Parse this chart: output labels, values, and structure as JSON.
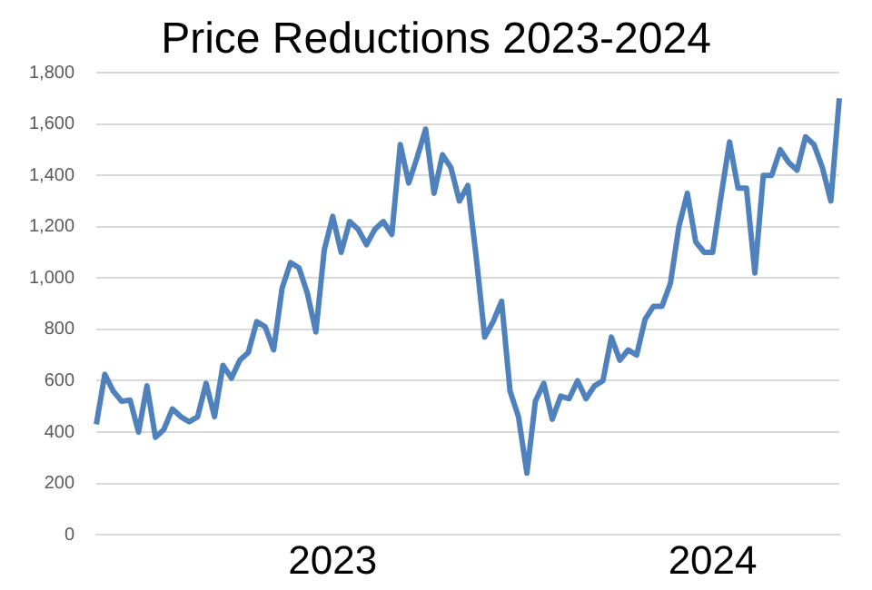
{
  "chart_data": {
    "type": "line",
    "title": "Price Reductions 2023-2024",
    "categories": [
      null,
      null,
      null,
      null,
      null,
      null,
      null,
      null,
      null,
      null,
      null,
      null,
      null,
      null,
      null,
      null,
      null,
      null,
      null,
      null,
      null,
      null,
      null,
      null,
      null,
      null,
      null,
      null,
      "2023",
      null,
      null,
      null,
      null,
      null,
      null,
      null,
      null,
      null,
      null,
      null,
      null,
      null,
      null,
      null,
      null,
      null,
      null,
      null,
      null,
      null,
      null,
      null,
      null,
      null,
      null,
      null,
      null,
      null,
      null,
      null,
      null,
      null,
      null,
      null,
      null,
      null,
      null,
      null,
      null,
      null,
      null,
      null,
      null,
      "2024",
      null,
      null,
      null,
      null,
      null,
      null,
      null,
      null,
      null,
      null,
      null,
      null,
      null,
      null,
      null
    ],
    "series": [
      {
        "color": "#4f81bd",
        "values": [
          430,
          625,
          560,
          520,
          525,
          400,
          580,
          380,
          410,
          490,
          460,
          440,
          460,
          590,
          460,
          660,
          610,
          680,
          710,
          830,
          810,
          720,
          960,
          1060,
          1040,
          940,
          790,
          1110,
          1240,
          1100,
          1220,
          1190,
          1130,
          1190,
          1220,
          1170,
          1520,
          1370,
          1470,
          1580,
          1330,
          1480,
          1430,
          1300,
          1360,
          1080,
          770,
          830,
          910,
          560,
          460,
          240,
          520,
          590,
          450,
          540,
          530,
          600,
          530,
          580,
          600,
          770,
          680,
          720,
          700,
          840,
          890,
          890,
          980,
          1200,
          1330,
          1140,
          1100,
          1100,
          1320,
          1530,
          1350,
          1350,
          1020,
          1400,
          1400,
          1500,
          1450,
          1420,
          1550,
          1520,
          1430,
          1300,
          1700
        ]
      }
    ],
    "ylim": [
      0,
      1800
    ],
    "yticks": [
      0,
      200,
      400,
      600,
      800,
      {
        "value": 1000,
        "label": "1,000"
      },
      {
        "value": 1200,
        "label": "1,200"
      },
      {
        "value": 1400,
        "label": "1,400"
      },
      {
        "value": 1600,
        "label": "1,600"
      },
      {
        "value": 1800,
        "label": "1,800"
      }
    ],
    "grid": "y",
    "legend": false,
    "marker": "none",
    "line_style": "solid"
  }
}
